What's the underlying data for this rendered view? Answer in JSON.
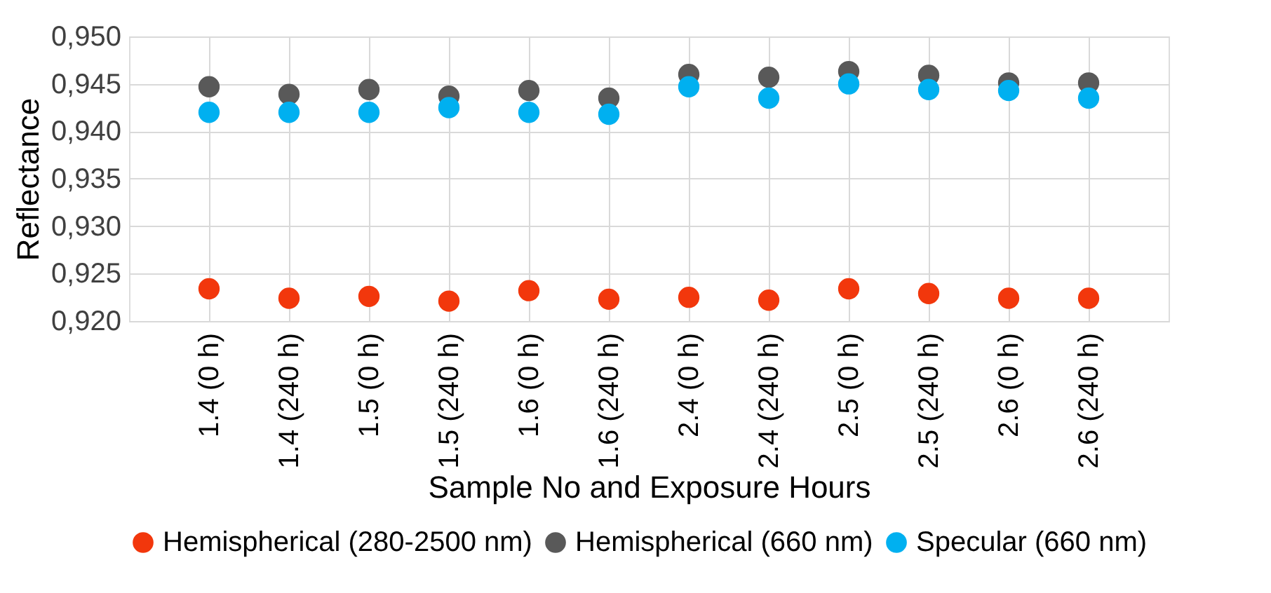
{
  "chart_data": {
    "type": "scatter",
    "xlabel": "Sample No and Exposure Hours",
    "ylabel": "Reflectance",
    "categories": [
      "1.4 (0 h)",
      "1.4 (240 h)",
      "1.5 (0 h)",
      "1.5 (240 h)",
      "1.6 (0 h)",
      "1.6 (240 h)",
      "2.4 (0 h)",
      "2.4 (240 h)",
      "2.5 (0 h)",
      "2.5 (240 h)",
      "2.6 (0 h)",
      "2.6 (240 h)"
    ],
    "series": [
      {
        "name": "Hemispherical (280-2500 nm)",
        "color": "#f2370c",
        "values": [
          0.9234,
          0.9224,
          0.9226,
          0.9221,
          0.9232,
          0.9223,
          0.9225,
          0.9222,
          0.9234,
          0.9229,
          0.9224,
          0.9224
        ]
      },
      {
        "name": "Hemispherical (660 nm)",
        "color": "#595959",
        "values": [
          0.9447,
          0.9439,
          0.9444,
          0.9437,
          0.9443,
          0.9435,
          0.946,
          0.9457,
          0.9463,
          0.9459,
          0.9451,
          0.9451
        ]
      },
      {
        "name": "Specular (660 nm)",
        "color": "#00b0f0",
        "values": [
          0.942,
          0.942,
          0.942,
          0.9425,
          0.942,
          0.9418,
          0.9447,
          0.9435,
          0.945,
          0.9444,
          0.9443,
          0.9435
        ]
      }
    ],
    "ylim": [
      0.92,
      0.95
    ],
    "yticks": [
      {
        "value": 0.92,
        "label": "0,920"
      },
      {
        "value": 0.925,
        "label": "0,925"
      },
      {
        "value": 0.93,
        "label": "0,930"
      },
      {
        "value": 0.935,
        "label": "0,935"
      },
      {
        "value": 0.94,
        "label": "0,940"
      },
      {
        "value": 0.945,
        "label": "0,945"
      },
      {
        "value": 0.95,
        "label": "0,950"
      }
    ],
    "grid": true,
    "legend": "bottom",
    "marker": "circle"
  }
}
